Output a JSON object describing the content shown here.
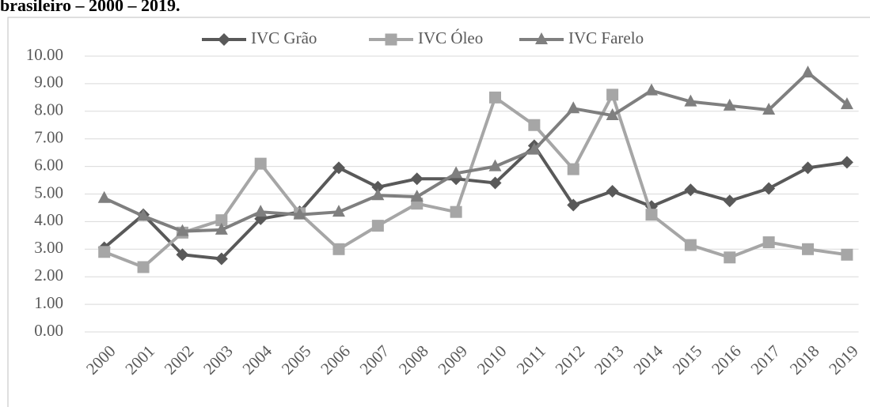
{
  "chart_data": {
    "type": "line",
    "title": "brasileiro – 2000 – 2019.",
    "categories": [
      "2000",
      "2001",
      "2002",
      "2003",
      "2004",
      "2005",
      "2006",
      "2007",
      "2008",
      "2009",
      "2010",
      "2011",
      "2012",
      "2013",
      "2014",
      "2015",
      "2016",
      "2017",
      "2018",
      "2019"
    ],
    "series": [
      {
        "name": "IVC Grão",
        "color": "#595959",
        "marker": "diamond",
        "values": [
          3.05,
          4.25,
          2.8,
          2.65,
          4.1,
          4.35,
          5.95,
          5.25,
          5.55,
          5.55,
          5.4,
          6.75,
          4.6,
          5.1,
          4.55,
          5.15,
          4.75,
          5.2,
          5.95,
          6.15
        ]
      },
      {
        "name": "IVC Óleo",
        "color": "#a6a6a6",
        "marker": "square",
        "values": [
          2.9,
          2.35,
          3.6,
          4.05,
          6.1,
          4.3,
          3.0,
          3.85,
          4.65,
          4.35,
          8.5,
          7.5,
          5.9,
          8.6,
          4.25,
          3.15,
          2.7,
          3.25,
          3.0,
          2.8
        ]
      },
      {
        "name": "IVC Farelo",
        "color": "#7f7f7f",
        "marker": "triangle",
        "values": [
          4.85,
          4.2,
          3.65,
          3.7,
          4.35,
          4.25,
          4.35,
          4.95,
          4.9,
          5.75,
          6.0,
          6.6,
          8.1,
          7.85,
          8.75,
          8.35,
          8.2,
          8.05,
          9.4,
          8.25
        ]
      }
    ],
    "ylim": [
      0,
      10
    ],
    "yticks": [
      {
        "value": 0,
        "label": "0.00"
      },
      {
        "value": 1,
        "label": "1.00"
      },
      {
        "value": 2,
        "label": "2.00"
      },
      {
        "value": 3,
        "label": "3.00"
      },
      {
        "value": 4,
        "label": "4.00"
      },
      {
        "value": 5,
        "label": "5.00"
      },
      {
        "value": 6,
        "label": "6.00"
      },
      {
        "value": 7,
        "label": "7.00"
      },
      {
        "value": 8,
        "label": "8.00"
      },
      {
        "value": 9,
        "label": "9.00"
      },
      {
        "value": 10,
        "label": "10.00"
      }
    ],
    "grid": true,
    "legend": "top"
  }
}
